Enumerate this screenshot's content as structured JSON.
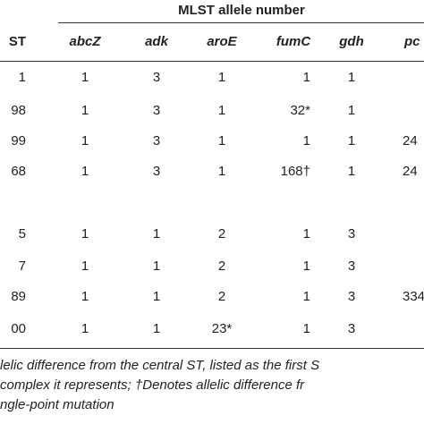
{
  "table": {
    "spanner": "MLST allele number",
    "headers": [
      "ST",
      "abcZ",
      "adk",
      "aroE",
      "fumC",
      "gdh",
      "pc"
    ],
    "rows": [
      [
        "1",
        "1",
        "3",
        "1",
        "1",
        "1"
      ],
      [
        "98",
        "1",
        "3",
        "1",
        "32*",
        "1"
      ],
      [
        "99",
        "1",
        "3",
        "1",
        "1",
        "1",
        "24"
      ],
      [
        "68",
        "1",
        "3",
        "1",
        "168†",
        "1",
        "24"
      ],
      [
        "5",
        "1",
        "1",
        "2",
        "1",
        "3"
      ],
      [
        "7",
        "1",
        "1",
        "2",
        "1",
        "3"
      ],
      [
        "89",
        "1",
        "1",
        "2",
        "1",
        "3",
        "334"
      ],
      [
        "00",
        "1",
        "1",
        "23*",
        "1",
        "3"
      ]
    ]
  },
  "footnote": [
    "lelic difference from the central ST, listed as the first S",
    "complex it represents; †Denotes allelic difference fr",
    "ngle-point mutation"
  ]
}
